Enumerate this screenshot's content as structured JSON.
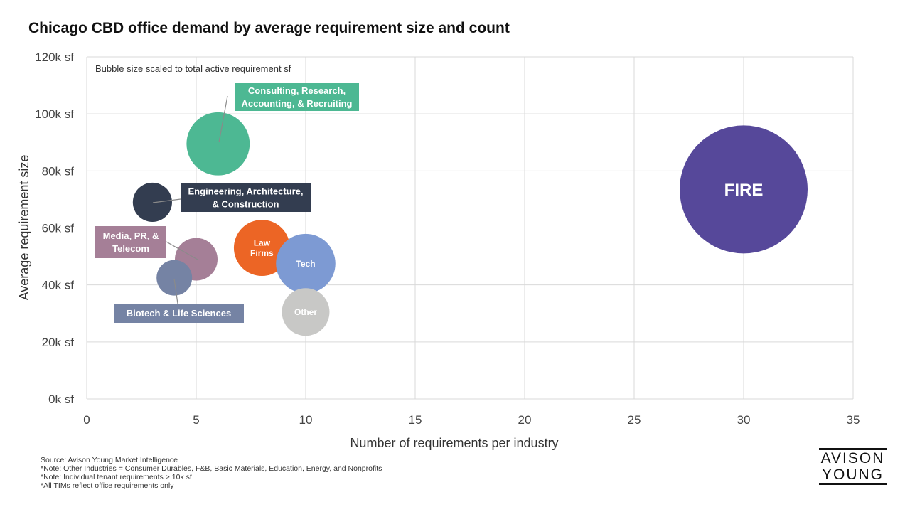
{
  "chart_data": {
    "type": "bubble",
    "title": "Chicago CBD office demand by average requirement size and count",
    "xlabel": "Number of requirements per industry",
    "ylabel": "Average requirement size",
    "note": "Bubble size scaled to total active requirement sf",
    "xlim": [
      0,
      35
    ],
    "ylim": [
      0,
      120000
    ],
    "x_ticks": [
      "0",
      "5",
      "10",
      "15",
      "20",
      "25",
      "30",
      "35"
    ],
    "y_ticks": [
      "0k sf",
      "20k sf",
      "40k sf",
      "60k sf",
      "80k sf",
      "100k sf",
      "120k sf"
    ],
    "grid": true,
    "series": [
      {
        "name": "FIRE",
        "label_lines": [
          "FIRE"
        ],
        "x": 30,
        "y": 73500,
        "size": 2205000,
        "color": "#56489A",
        "label_style": "inside"
      },
      {
        "name": "Consulting, Research, Accounting, & Recruiting",
        "label_lines": [
          "Consulting, Research,",
          "Accounting, & Recruiting"
        ],
        "x": 6,
        "y": 89500,
        "size": 537000,
        "color": "#4DB893",
        "label_style": "callout"
      },
      {
        "name": "Engineering, Architecture, & Construction",
        "label_lines": [
          "Engineering, Architecture,",
          "& Construction"
        ],
        "x": 3,
        "y": 69000,
        "size": 207000,
        "color": "#333D50",
        "label_style": "callout"
      },
      {
        "name": "Media, PR, & Telecom",
        "label_lines": [
          "Media, PR, &",
          "Telecom"
        ],
        "x": 5,
        "y": 49000,
        "size": 245000,
        "color": "#A57F97",
        "label_style": "callout"
      },
      {
        "name": "Biotech & Life Sciences",
        "label_lines": [
          "Biotech & Life Sciences"
        ],
        "x": 4,
        "y": 42500,
        "size": 170000,
        "color": "#7583A4",
        "label_style": "callout"
      },
      {
        "name": "Law Firms",
        "label_lines": [
          "Law",
          "Firms"
        ],
        "x": 8,
        "y": 53000,
        "size": 424000,
        "color": "#EC6525",
        "label_style": "inside"
      },
      {
        "name": "Tech",
        "label_lines": [
          "Tech"
        ],
        "x": 10,
        "y": 47500,
        "size": 475000,
        "color": "#7D9AD3",
        "label_style": "inside"
      },
      {
        "name": "Other",
        "label_lines": [
          "Other"
        ],
        "x": 10,
        "y": 30500,
        "size": 305000,
        "color": "#C8C8C6",
        "label_style": "inside"
      }
    ]
  },
  "footer": {
    "source": "Source: Avison Young Market Intelligence",
    "note1": "*Note: Other Industries = Consumer Durables, F&B, Basic Materials, Education, Energy, and Nonprofits",
    "note2": "*Note: Individual tenant requirements > 10k sf",
    "note3": "*All TIMs reflect office requirements only"
  },
  "logo": {
    "line1": "AVISON",
    "line2": "YOUNG"
  }
}
